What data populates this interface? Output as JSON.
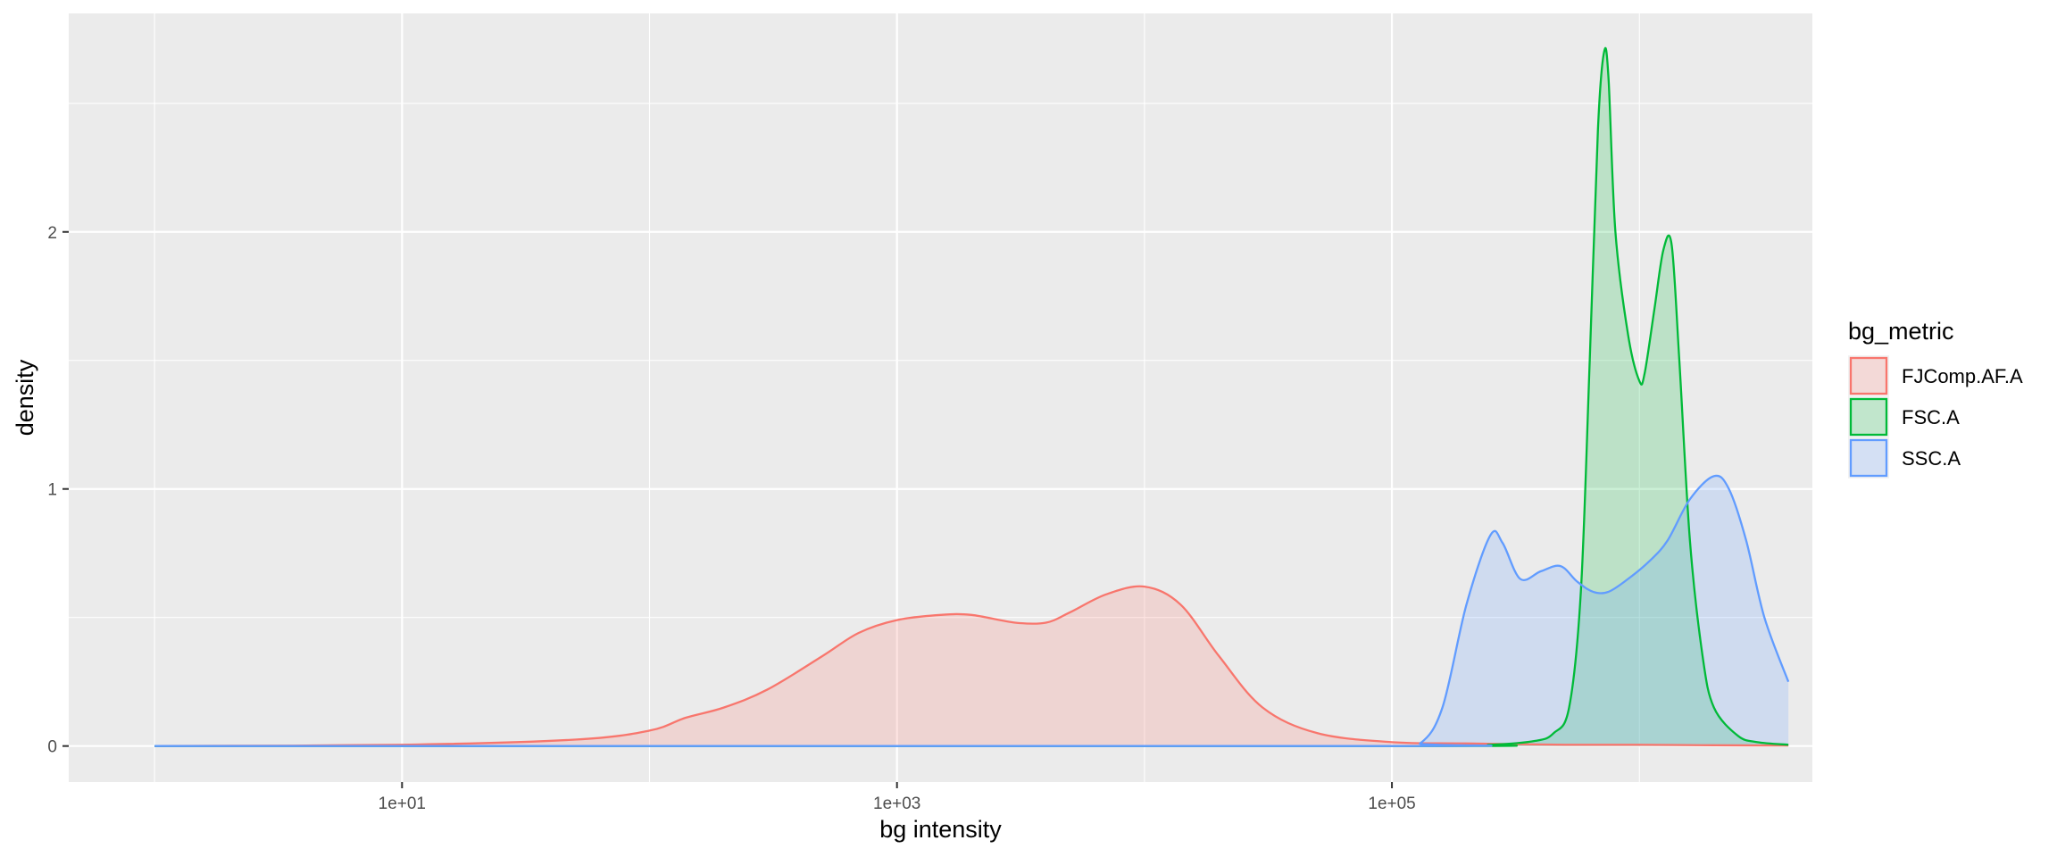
{
  "chart_data": {
    "type": "area",
    "title": "",
    "xlabel": "bg intensity",
    "ylabel": "density",
    "x_scale": "log10",
    "xlim": [
      0.45,
      5000000
    ],
    "ylim": [
      -0.14,
      2.85
    ],
    "x_ticks": [
      {
        "value": 10,
        "label": "1e+01"
      },
      {
        "value": 1000,
        "label": "1e+03"
      },
      {
        "value": 100000,
        "label": "1e+05"
      }
    ],
    "y_ticks": [
      {
        "value": 0,
        "label": "0"
      },
      {
        "value": 1,
        "label": "1"
      },
      {
        "value": 2,
        "label": "2"
      }
    ],
    "grid": true,
    "legend": {
      "title": "bg_metric",
      "position": "right"
    },
    "series": [
      {
        "name": "FJComp.AF.A",
        "color": "#F8766D",
        "x": [
          1,
          10,
          50,
          100,
          140,
          200,
          300,
          500,
          700,
          1000,
          1500,
          2000,
          3000,
          4000,
          5000,
          7000,
          10000,
          14000,
          20000,
          30000,
          50000,
          100000,
          200000,
          500000,
          1000000,
          2000000,
          4000000
        ],
        "y": [
          0.0,
          0.005,
          0.025,
          0.06,
          0.11,
          0.15,
          0.22,
          0.35,
          0.44,
          0.49,
          0.51,
          0.51,
          0.48,
          0.48,
          0.52,
          0.59,
          0.62,
          0.55,
          0.35,
          0.15,
          0.05,
          0.015,
          0.01,
          0.005,
          0.005,
          0.003,
          0.002
        ]
      },
      {
        "name": "FSC.A",
        "color": "#00BA38",
        "x": [
          1,
          100000,
          250000,
          380000,
          450000,
          520000,
          580000,
          630000,
          680000,
          720000,
          750000,
          800000,
          900000,
          1000000,
          1050000,
          1150000,
          1250000,
          1350000,
          1450000,
          1600000,
          1800000,
          2000000,
          2500000,
          3000000,
          4000000
        ],
        "y": [
          0.0,
          0.0,
          0.005,
          0.02,
          0.05,
          0.15,
          0.6,
          1.5,
          2.4,
          2.7,
          2.6,
          2.0,
          1.6,
          1.42,
          1.45,
          1.7,
          1.93,
          1.95,
          1.5,
          0.8,
          0.35,
          0.15,
          0.04,
          0.015,
          0.005
        ]
      },
      {
        "name": "SSC.A",
        "color": "#619CFF",
        "x": [
          1,
          100000,
          130000,
          160000,
          200000,
          250000,
          280000,
          330000,
          400000,
          480000,
          560000,
          650000,
          750000,
          900000,
          1100000,
          1300000,
          1600000,
          2000000,
          2300000,
          2700000,
          3200000,
          4000000
        ],
        "y": [
          0.0,
          0.0,
          0.01,
          0.15,
          0.55,
          0.82,
          0.79,
          0.65,
          0.68,
          0.7,
          0.64,
          0.6,
          0.6,
          0.65,
          0.72,
          0.8,
          0.96,
          1.05,
          1.0,
          0.8,
          0.5,
          0.25
        ]
      }
    ]
  }
}
